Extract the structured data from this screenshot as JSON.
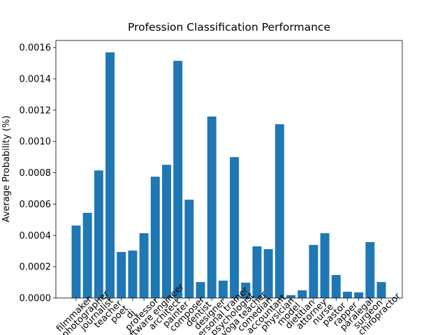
{
  "chart_data": {
    "type": "bar",
    "title": "Profession Classification Performance",
    "y_label": "Average Probability (%)",
    "color": "#1f77b4",
    "categories": [
      "filmmaker",
      "photographer",
      "journalist",
      "teacher",
      "poet",
      "dj",
      "professor",
      "software engineer",
      "architect",
      "painter",
      "composer",
      "dentist",
      "designer",
      "personal trainer",
      "psychologist",
      "yoga teacher",
      "comedian",
      "accountant",
      "physician",
      "model",
      "dietitian",
      "attorney",
      "nurse",
      "pastor",
      "rapper",
      "paralegal",
      "surgeon",
      "chiropractor"
    ],
    "values": [
      0.000463,
      0.000544,
      0.000815,
      0.001569,
      0.000294,
      0.000303,
      0.000414,
      0.000775,
      0.000851,
      0.001515,
      0.000628,
      0.000102,
      0.001159,
      0.000111,
      0.0009,
      9.8e-05,
      0.00033,
      0.000312,
      0.00111,
      1.8e-05,
      4.9e-05,
      0.000339,
      0.000414,
      0.000147,
      4e-05,
      3.6e-05,
      0.000357,
      0.000102
    ],
    "ylim": [
      0,
      0.001645
    ],
    "yticks": [
      {
        "value": 0,
        "label": "0.0000"
      },
      {
        "value": 0.0002,
        "label": "0.0002"
      },
      {
        "value": 0.0004,
        "label": "0.0004"
      },
      {
        "value": 0.0006,
        "label": "0.0006"
      },
      {
        "value": 0.0008,
        "label": "0.0008"
      },
      {
        "value": 0.001,
        "label": "0.0010"
      },
      {
        "value": 0.0012,
        "label": "0.0012"
      },
      {
        "value": 0.0014,
        "label": "0.0014"
      },
      {
        "value": 0.0016,
        "label": "0.0016"
      }
    ],
    "grid": false
  }
}
